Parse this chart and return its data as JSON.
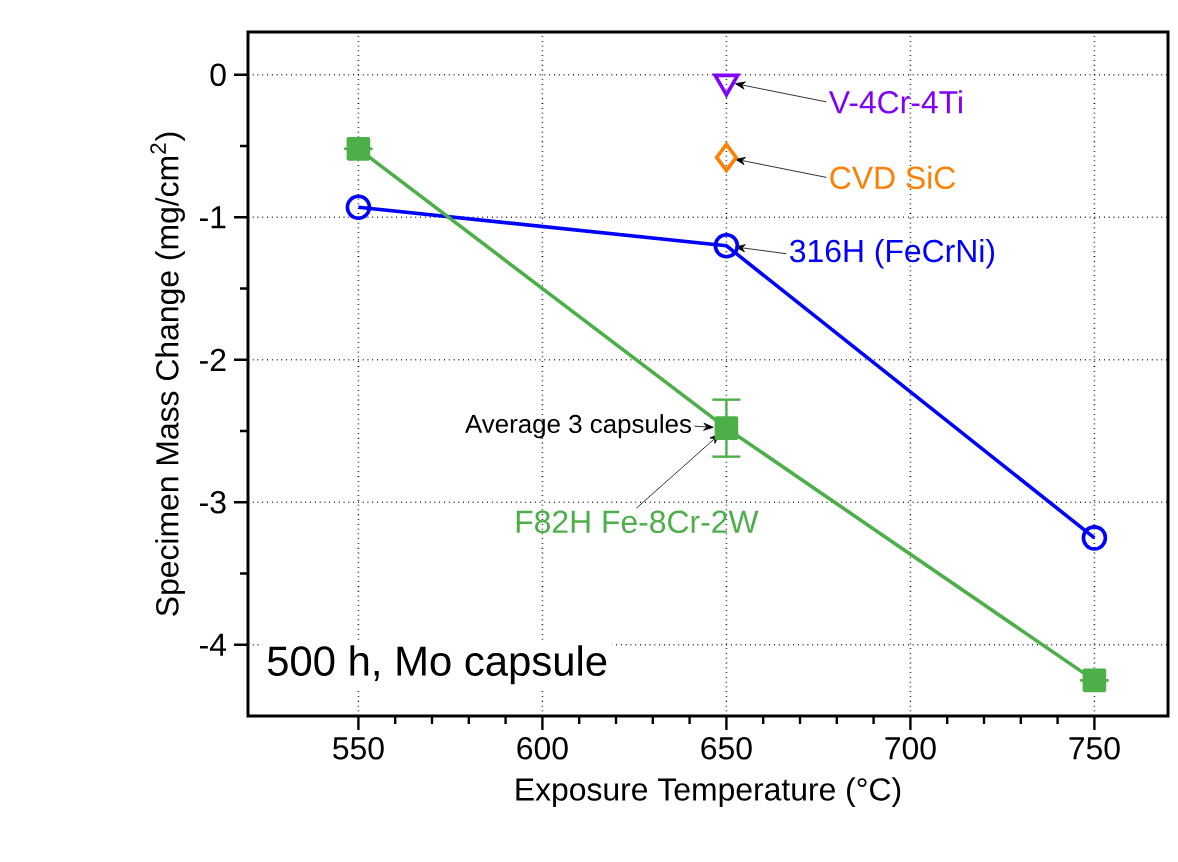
{
  "chart_data": {
    "type": "line",
    "xlabel": "Exposure Temperature (°C)",
    "ylabel": "Specimen Mass Change (mg/cm$^{2}$)",
    "xlim": [
      520,
      770
    ],
    "ylim": [
      -4.5,
      0.3
    ],
    "xticks": [
      550,
      600,
      650,
      700,
      750
    ],
    "yticks": [
      -4,
      -3,
      -2,
      -1,
      0
    ],
    "grid": true,
    "series": [
      {
        "name": "316H (FeCrNi)",
        "marker": "circle",
        "color": "#0000ff",
        "x": [
          550,
          650,
          750
        ],
        "values": [
          -0.93,
          -1.2,
          -3.25
        ]
      },
      {
        "name": "F82H Fe-8Cr-2W",
        "marker": "square",
        "color": "#4daf4a",
        "x": [
          550,
          650,
          750
        ],
        "values": [
          -0.52,
          -2.48,
          -4.25
        ],
        "errors": [
          null,
          0.2,
          null
        ]
      },
      {
        "name": "V-4Cr-4Ti",
        "type": "scatter",
        "marker": "triangle",
        "color": "#8000ff",
        "x": [
          650
        ],
        "values": [
          -0.05
        ]
      },
      {
        "name": "CVD SiC",
        "type": "scatter",
        "marker": "diamond",
        "color": "#ff7f00",
        "x": [
          650
        ],
        "values": [
          -0.58
        ]
      }
    ],
    "annotations": [
      {
        "text": "Average 3 capsules",
        "x": 650,
        "y": -2.48
      },
      "500 h, Mo capsule"
    ]
  }
}
